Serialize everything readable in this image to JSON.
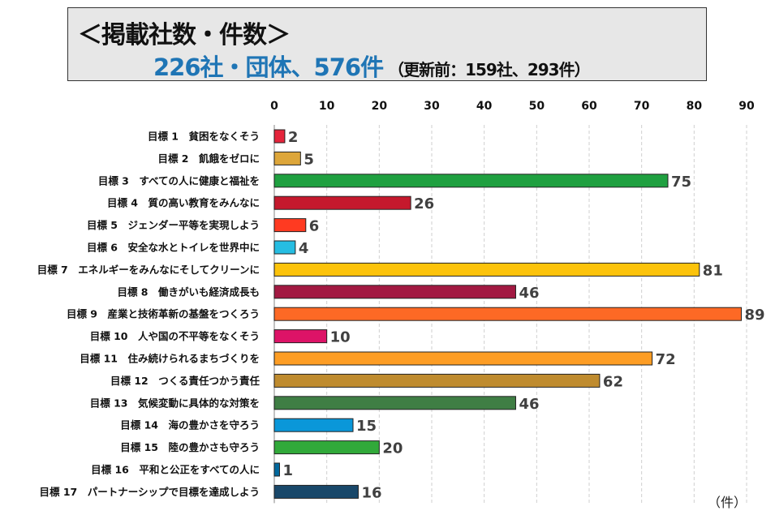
{
  "header": {
    "title": "＜掲載社数・件数＞",
    "summary": "226社・団体、576件",
    "previous": "（更新前：159社、293件）"
  },
  "chart_data": {
    "type": "bar",
    "orientation": "horizontal",
    "categories": [
      "目標 1　貧困をなくそう",
      "目標 2　飢餓をゼロに",
      "目標 3　すべての人に健康と福祉を",
      "目標 4　質の高い教育をみんなに",
      "目標 5　ジェンダー平等を実現しよう",
      "目標 6　安全な水とトイレを世界中に",
      "目標 7　エネルギーをみんなにそしてクリーンに",
      "目標 8　働きがいも経済成長も",
      "目標 9　産業と技術革新の基盤をつくろう",
      "目標 10　人や国の不平等をなくそう",
      "目標 11　住み続けられるまちづくりを",
      "目標 12　つくる責任つかう責任",
      "目標 13　気候変動に具体的な対策を",
      "目標 14　海の豊かさを守ろう",
      "目標 15　陸の豊かさも守ろう",
      "目標 16　平和と公正をすべての人に",
      "目標 17　パートナーシップで目標を達成しよう"
    ],
    "values": [
      2,
      5,
      75,
      26,
      6,
      4,
      81,
      46,
      89,
      10,
      72,
      62,
      46,
      15,
      20,
      1,
      16
    ],
    "colors": [
      "#e5243b",
      "#dda63a",
      "#1fa040",
      "#c5192d",
      "#ff3a21",
      "#26bde2",
      "#fcc30b",
      "#a21942",
      "#fd6925",
      "#dd1367",
      "#fd9d24",
      "#bf8b2e",
      "#3f7e44",
      "#0a97d9",
      "#31a93a",
      "#00689d",
      "#19486a"
    ],
    "xlim": [
      0,
      90
    ],
    "xticks": [
      0,
      10,
      20,
      30,
      40,
      50,
      60,
      70,
      80,
      90
    ],
    "xticks_position": "top",
    "unit": "（件）",
    "grid": "vertical dashed"
  }
}
